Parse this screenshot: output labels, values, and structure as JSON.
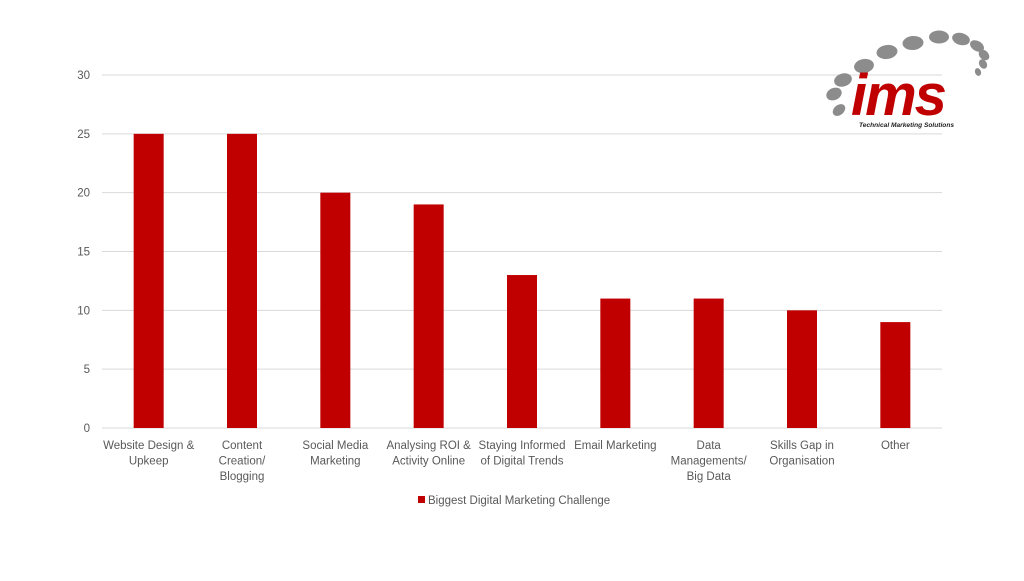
{
  "chart_data": {
    "type": "bar",
    "categories": [
      [
        "Website Design &",
        "Upkeep"
      ],
      [
        "Content",
        "Creation/",
        "Blogging"
      ],
      [
        "Social Media",
        "Marketing"
      ],
      [
        "Analysing ROI &",
        "Activity Online"
      ],
      [
        "Staying Informed",
        "of Digital Trends"
      ],
      [
        "Email Marketing"
      ],
      [
        "Data",
        "Managements/",
        "Big Data"
      ],
      [
        "Skills Gap in",
        "Organisation"
      ],
      [
        "Other"
      ]
    ],
    "series": [
      {
        "name": "Biggest Digital Marketing Challenge",
        "values": [
          25,
          25,
          20,
          19,
          13,
          11,
          11,
          10,
          9
        ]
      }
    ],
    "ylim": [
      0,
      30
    ],
    "yticks": [
      0,
      5,
      10,
      15,
      20,
      25,
      30
    ],
    "grid": true,
    "legend_position": "bottom",
    "bar_color": "#c00000",
    "grid_color": "#d9d9d9",
    "text_color": "#595959"
  },
  "logo": {
    "wordmark": "ims",
    "tagline": "Technical Marketing Solutions",
    "brand_color": "#c00000",
    "dot_color": "#8c8c8c"
  }
}
